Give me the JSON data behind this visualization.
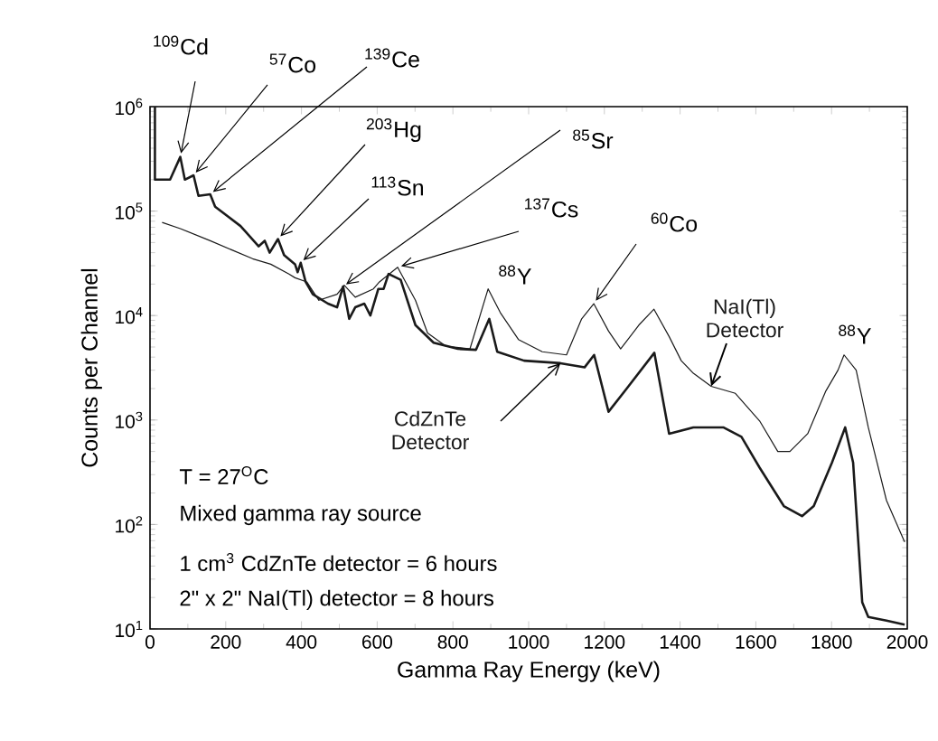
{
  "chart_data": {
    "type": "line",
    "xlabel": "Gamma Ray Energy (keV)",
    "ylabel": "Counts per Channel",
    "log": "y",
    "grid": false,
    "marker": "none",
    "line_style": "solid",
    "xlim": [
      0,
      2000
    ],
    "xticks": [
      0,
      200,
      400,
      600,
      800,
      1000,
      1200,
      1400,
      1600,
      1800,
      2000
    ],
    "ylim": [
      10,
      1000000
    ],
    "yticks": [
      {
        "value": 10,
        "label": "10$^{1}$"
      },
      {
        "value": 100,
        "label": "10$^{2}$"
      },
      {
        "value": 1000,
        "label": "10$^{3}$"
      },
      {
        "value": 10000,
        "label": "10$^{4}$"
      },
      {
        "value": 100000,
        "label": "10$^{5}$"
      },
      {
        "value": 1000000,
        "label": "10$^{6}$"
      }
    ],
    "series": [
      {
        "name": "NaI(Tl) Detector",
        "color": "#1a1a1a",
        "x": [
          32,
          80,
          159,
          271,
          319,
          367,
          383,
          414,
          446,
          494,
          513,
          542,
          590,
          606,
          654,
          701,
          733,
          781,
          845,
          893,
          925,
          973,
          1036,
          1100,
          1140,
          1172,
          1211,
          1243,
          1291,
          1331,
          1371,
          1403,
          1435,
          1482,
          1546,
          1610,
          1658,
          1690,
          1737,
          1785,
          1817,
          1833,
          1865,
          1897,
          1945,
          1993
        ],
        "values": [
          78000,
          68000,
          52000,
          35000,
          31000,
          25000,
          23000,
          21000,
          14000,
          16000,
          19500,
          15000,
          18000,
          21000,
          29000,
          14000,
          6800,
          5100,
          4800,
          18000,
          10700,
          5900,
          4500,
          4200,
          9300,
          13000,
          7100,
          4800,
          8100,
          11500,
          6300,
          3700,
          2800,
          2100,
          1800,
          980,
          500,
          500,
          740,
          1900,
          3000,
          4200,
          3000,
          850,
          170,
          68
        ]
      },
      {
        "name": "CdZnTe Detector",
        "color": "#1a1a1a",
        "x": [
          13,
          13,
          53,
          80,
          92,
          115,
          128,
          159,
          172,
          239,
          287,
          303,
          316,
          338,
          354,
          383,
          390,
          398,
          411,
          430,
          470,
          494,
          510,
          526,
          542,
          566,
          582,
          603,
          617,
          630,
          662,
          701,
          749,
          813,
          861,
          896,
          917,
          988,
          1084,
          1148,
          1173,
          1211,
          1259,
          1332,
          1371,
          1435,
          1514,
          1562,
          1610,
          1674,
          1722,
          1753,
          1801,
          1836,
          1857,
          1881,
          1897,
          1945,
          1993
        ],
        "values": [
          1000000,
          200000,
          200000,
          330000,
          200000,
          220000,
          140000,
          145000,
          110000,
          72000,
          46000,
          52000,
          40000,
          54000,
          38000,
          31000,
          26000,
          32000,
          21000,
          16000,
          13000,
          12000,
          19000,
          9300,
          12000,
          13000,
          10000,
          18000,
          18000,
          25000,
          22000,
          8100,
          5500,
          4800,
          4700,
          9300,
          4500,
          3700,
          3500,
          3200,
          4200,
          1200,
          2000,
          4400,
          740,
          850,
          850,
          690,
          350,
          150,
          120,
          150,
          390,
          850,
          390,
          18,
          13,
          12,
          11
        ]
      }
    ],
    "annotations": [
      {
        "text": "$^{109}$Cd",
        "x": 80,
        "y": 330000
      },
      {
        "text": "$^{57}$Co",
        "x": 115,
        "y": 220000
      },
      {
        "text": "$^{139}$Ce",
        "x": 159,
        "y": 145000
      },
      {
        "text": "$^{203}$Hg",
        "x": 338,
        "y": 54000
      },
      {
        "text": "$^{113}$Sn",
        "x": 398,
        "y": 32000
      },
      {
        "text": "$^{85}$Sr",
        "x": 510,
        "y": 19000
      },
      {
        "text": "$^{137}$Cs",
        "x": 654,
        "y": 29000
      },
      {
        "text": "$^{88}$Y",
        "x": 898,
        "y": 18000
      },
      {
        "text": "$^{60}$Co",
        "x": 1172,
        "y": 13000
      },
      {
        "text": "$^{88}$Y",
        "x": 1833,
        "y": 4200
      },
      "T = 27$^{O}$C",
      "Mixed gamma ray source",
      "1 cm$^{3}$ CdZnTe detector = 6 hours",
      "2\" x 2\" NaI(Tl) detector = 8 hours"
    ]
  }
}
